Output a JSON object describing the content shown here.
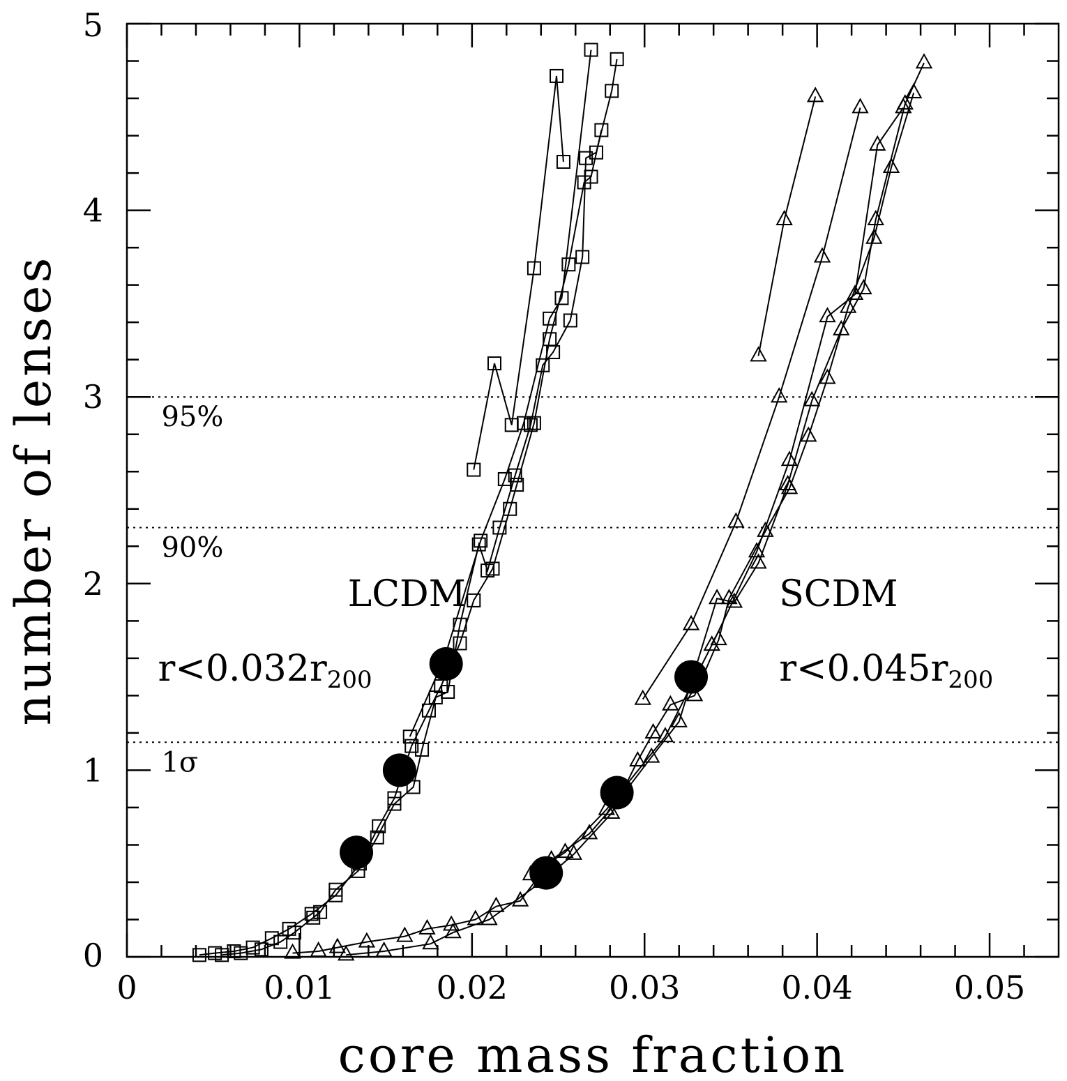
{
  "chart_data": {
    "type": "scatter",
    "xlabel": "core mass fraction",
    "ylabel": "number of lenses",
    "xlim": [
      0,
      0.054
    ],
    "ylim": [
      0,
      5
    ],
    "x_ticks": [
      {
        "value": 0,
        "label": "0"
      },
      {
        "value": 0.01,
        "label": "0.01"
      },
      {
        "value": 0.02,
        "label": "0.02"
      },
      {
        "value": 0.03,
        "label": "0.03"
      },
      {
        "value": 0.04,
        "label": "0.04"
      },
      {
        "value": 0.05,
        "label": "0.05"
      }
    ],
    "y_ticks": [
      {
        "value": 0,
        "label": "0"
      },
      {
        "value": 1,
        "label": "1"
      },
      {
        "value": 2,
        "label": "2"
      },
      {
        "value": 3,
        "label": "3"
      },
      {
        "value": 4,
        "label": "4"
      },
      {
        "value": 5,
        "label": "5"
      }
    ],
    "reference_lines": [
      {
        "y": 3.0,
        "label": "95%"
      },
      {
        "y": 2.3,
        "label": "90%"
      },
      {
        "y": 1.15,
        "label": "1σ"
      }
    ],
    "annotations": [
      {
        "text": "LCDM",
        "x": 0.0128,
        "y": 1.88,
        "anchor": "start"
      },
      {
        "text": "r<0.032r",
        "sub": "200",
        "x": 0.0018,
        "y": 1.48,
        "anchor": "start"
      },
      {
        "text": "SCDM",
        "x": 0.0378,
        "y": 1.88,
        "anchor": "start"
      },
      {
        "text": "r<0.045r",
        "sub": "200",
        "x": 0.0378,
        "y": 1.48,
        "anchor": "start"
      }
    ],
    "series": [
      {
        "marker": "square",
        "x": [
          0.0201,
          0.0213,
          0.0223,
          0.0236,
          0.0249,
          0.0253
        ],
        "y": [
          2.61,
          3.18,
          2.85,
          3.69,
          4.72,
          4.26
        ]
      },
      {
        "marker": "square",
        "x": [
          0.0042,
          0.0051,
          0.0062,
          0.0073,
          0.0084,
          0.0094,
          0.0107,
          0.0121,
          0.0135,
          0.0146,
          0.0155,
          0.0165,
          0.0175,
          0.0182,
          0.0193,
          0.0201,
          0.0212,
          0.0222,
          0.0226,
          0.0236,
          0.0245,
          0.0256,
          0.0265,
          0.0269,
          0.0275
        ],
        "y": [
          0.01,
          0.02,
          0.03,
          0.05,
          0.1,
          0.15,
          0.23,
          0.33,
          0.5,
          0.7,
          0.85,
          1.13,
          1.32,
          1.45,
          1.68,
          1.91,
          2.08,
          2.4,
          2.53,
          2.86,
          3.31,
          3.71,
          4.15,
          4.18,
          4.43
        ]
      },
      {
        "marker": "square",
        "x": [
          0.0055,
          0.0066,
          0.0078,
          0.0089,
          0.0097,
          0.0108,
          0.0112,
          0.0121,
          0.0134,
          0.0145,
          0.0155,
          0.0166,
          0.0171,
          0.0179,
          0.0186,
          0.0193,
          0.0204,
          0.0209,
          0.0216,
          0.0225,
          0.0234,
          0.0241,
          0.0247,
          0.0257,
          0.0264,
          0.0266,
          0.0272,
          0.0281,
          0.0284
        ],
        "y": [
          0.01,
          0.02,
          0.04,
          0.08,
          0.13,
          0.21,
          0.24,
          0.36,
          0.46,
          0.64,
          0.82,
          0.91,
          1.11,
          1.39,
          1.42,
          1.78,
          2.21,
          2.07,
          2.3,
          2.58,
          2.85,
          3.17,
          3.24,
          3.41,
          3.75,
          4.28,
          4.31,
          4.64,
          4.81
        ]
      },
      {
        "marker": "square",
        "x": [
          0.0164,
          0.0184,
          0.0205,
          0.0219,
          0.023,
          0.0245,
          0.0252,
          0.0269
        ],
        "y": [
          1.18,
          1.6,
          2.23,
          2.56,
          2.86,
          3.42,
          3.53,
          4.86
        ]
      },
      {
        "marker": "triangle",
        "x": [
          0.0366,
          0.0381,
          0.0399
        ],
        "y": [
          3.22,
          3.95,
          4.61
        ]
      },
      {
        "marker": "triangle",
        "x": [
          0.0299,
          0.0327,
          0.0353,
          0.0378,
          0.0403,
          0.0425
        ],
        "y": [
          1.38,
          1.78,
          2.33,
          3.0,
          3.75,
          4.55
        ]
      },
      {
        "marker": "triangle",
        "x": [
          0.0127,
          0.0149,
          0.0176,
          0.0189,
          0.021,
          0.024,
          0.0259,
          0.0281,
          0.0296,
          0.0305,
          0.0315,
          0.0329,
          0.0343,
          0.0349,
          0.037,
          0.0384,
          0.0395,
          0.0406,
          0.0418,
          0.0433,
          0.0443,
          0.0456
        ],
        "y": [
          0.01,
          0.03,
          0.07,
          0.13,
          0.2,
          0.4,
          0.55,
          0.77,
          1.05,
          1.2,
          1.35,
          1.4,
          1.7,
          1.92,
          2.28,
          2.51,
          2.79,
          3.1,
          3.48,
          3.85,
          4.23,
          4.63
        ]
      },
      {
        "marker": "triangle",
        "x": [
          0.0096,
          0.0111,
          0.0122,
          0.0139,
          0.0161,
          0.0174,
          0.0188,
          0.0202,
          0.0214,
          0.0228,
          0.0246,
          0.0268,
          0.0285,
          0.0304,
          0.032,
          0.0342,
          0.0352,
          0.0366,
          0.0383,
          0.0397,
          0.0414,
          0.0427,
          0.0434,
          0.0451,
          0.0462
        ],
        "y": [
          0.02,
          0.03,
          0.05,
          0.08,
          0.11,
          0.15,
          0.17,
          0.2,
          0.27,
          0.3,
          0.52,
          0.66,
          0.84,
          1.07,
          1.26,
          1.92,
          1.9,
          2.11,
          2.53,
          2.98,
          3.36,
          3.58,
          3.95,
          4.57,
          4.79
        ]
      },
      {
        "marker": "triangle",
        "x": [
          0.0234,
          0.0254,
          0.0278,
          0.0312,
          0.0339,
          0.0365,
          0.0384,
          0.0406,
          0.0422,
          0.0435,
          0.045
        ],
        "y": [
          0.44,
          0.56,
          0.79,
          1.18,
          1.67,
          2.17,
          2.66,
          3.43,
          3.55,
          4.35,
          4.55
        ]
      },
      {
        "marker": "filled-circle",
        "x": [
          0.0133,
          0.0158,
          0.0185,
          0.0243,
          0.0284,
          0.0327
        ],
        "y": [
          0.56,
          1.0,
          1.57,
          0.45,
          0.88,
          1.5
        ]
      }
    ]
  }
}
